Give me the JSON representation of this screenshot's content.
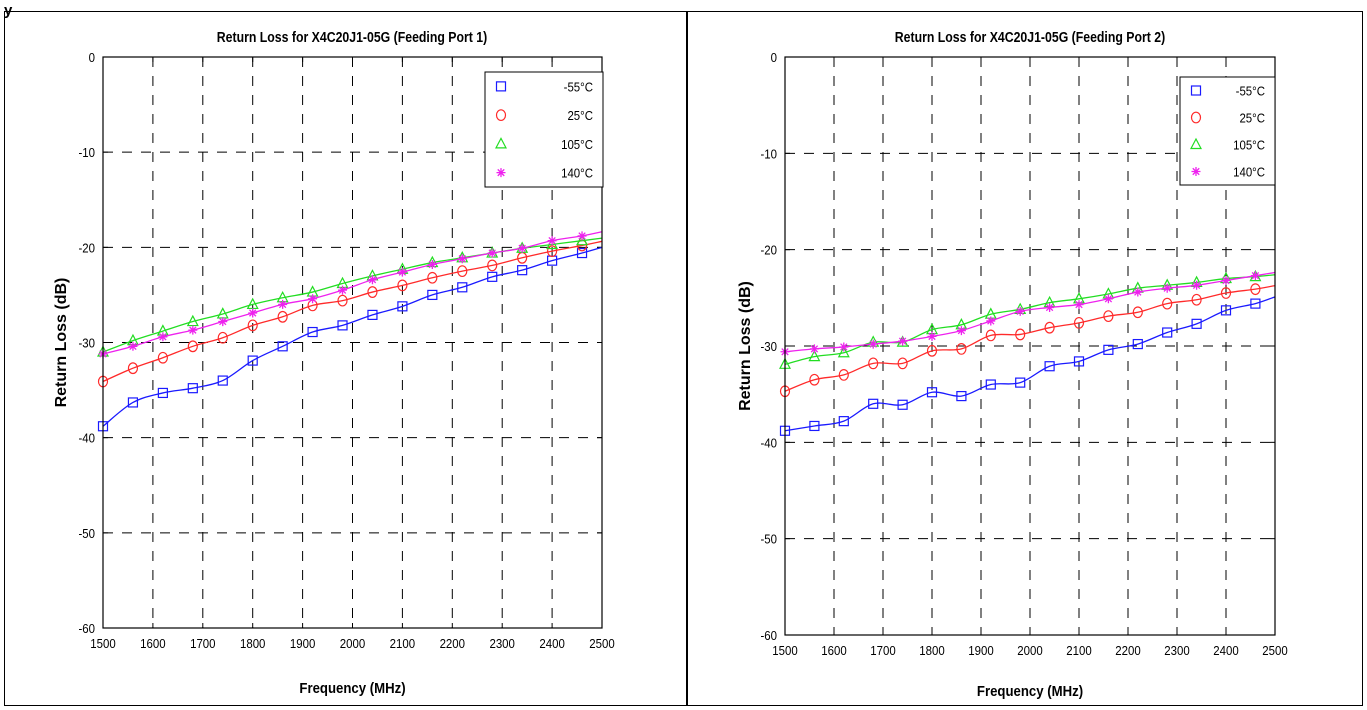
{
  "colors": {
    "minus55": "#1a1aff",
    "plus25": "#ff2a2a",
    "plus105": "#22dd22",
    "plus140": "#ee22ee",
    "grid": "#000000"
  },
  "chart_data": [
    {
      "type": "line",
      "title": "Return Loss for X4C20J1-05G (Feeding Port 1)",
      "xlabel": "Frequency (MHz)",
      "ylabel": "Return Loss (dB)",
      "xlim": [
        1500,
        2500
      ],
      "ylim": [
        -60,
        0
      ],
      "xticks": [
        1500,
        1600,
        1700,
        1800,
        1900,
        2000,
        2100,
        2200,
        2300,
        2400,
        2500
      ],
      "yticks": [
        0,
        -10,
        -20,
        -30,
        -40,
        -50,
        -60
      ],
      "grid": "dashed",
      "legend": "top-right",
      "x": [
        1500,
        1560,
        1620,
        1680,
        1740,
        1800,
        1860,
        1920,
        1980,
        2040,
        2100,
        2160,
        2220,
        2280,
        2340,
        2400,
        2460
      ],
      "series": [
        {
          "name": "-55°C",
          "marker": "square",
          "color": "#1a1aff",
          "values": [
            -38.8,
            -36.3,
            -35.3,
            -34.8,
            -34.0,
            -31.9,
            -30.4,
            -28.9,
            -28.2,
            -27.1,
            -26.2,
            -25.0,
            -24.2,
            -23.1,
            -22.4,
            -21.4,
            -20.6
          ]
        },
        {
          "name": "25°C",
          "marker": "circle",
          "color": "#ff2a2a",
          "values": [
            -34.1,
            -32.7,
            -31.6,
            -30.4,
            -29.5,
            -28.2,
            -27.3,
            -26.1,
            -25.6,
            -24.7,
            -24.0,
            -23.2,
            -22.5,
            -21.9,
            -21.1,
            -20.4,
            -19.8
          ]
        },
        {
          "name": "105°C",
          "marker": "triangle",
          "color": "#22dd22",
          "values": [
            -31.0,
            -29.8,
            -28.8,
            -27.8,
            -27.0,
            -26.0,
            -25.3,
            -24.7,
            -23.8,
            -23.0,
            -22.3,
            -21.6,
            -21.1,
            -20.6,
            -20.1,
            -19.7,
            -19.3
          ]
        },
        {
          "name": "140°C",
          "marker": "asterisk",
          "color": "#ee22ee",
          "values": [
            -31.2,
            -30.4,
            -29.4,
            -28.7,
            -27.8,
            -26.9,
            -26.0,
            -25.4,
            -24.5,
            -23.4,
            -22.6,
            -21.8,
            -21.2,
            -20.6,
            -20.1,
            -19.3,
            -18.8
          ]
        }
      ]
    },
    {
      "type": "line",
      "title": "Return Loss for X4C20J1-05G (Feeding Port 2)",
      "xlabel": "Frequency (MHz)",
      "ylabel": "Return Loss (dB)",
      "xlim": [
        1500,
        2500
      ],
      "ylim": [
        -60,
        0
      ],
      "xticks": [
        1500,
        1600,
        1700,
        1800,
        1900,
        2000,
        2100,
        2200,
        2300,
        2400,
        2500
      ],
      "yticks": [
        0,
        -10,
        -20,
        -30,
        -40,
        -50,
        -60
      ],
      "grid": "dashed",
      "legend": "top-right",
      "x": [
        1500,
        1560,
        1620,
        1680,
        1740,
        1800,
        1860,
        1920,
        1980,
        2040,
        2100,
        2160,
        2220,
        2280,
        2340,
        2400,
        2460
      ],
      "series": [
        {
          "name": "-55°C",
          "marker": "square",
          "color": "#1a1aff",
          "values": [
            -38.8,
            -38.3,
            -37.8,
            -36.0,
            -36.1,
            -34.8,
            -35.2,
            -34.0,
            -33.8,
            -32.1,
            -31.6,
            -30.4,
            -29.8,
            -28.6,
            -27.7,
            -26.3,
            -25.6
          ]
        },
        {
          "name": "25°C",
          "marker": "circle",
          "color": "#ff2a2a",
          "values": [
            -34.7,
            -33.5,
            -33.0,
            -31.8,
            -31.8,
            -30.5,
            -30.3,
            -28.9,
            -28.8,
            -28.1,
            -27.6,
            -26.9,
            -26.5,
            -25.6,
            -25.2,
            -24.5,
            -24.1
          ]
        },
        {
          "name": "105°C",
          "marker": "triangle",
          "color": "#22dd22",
          "values": [
            -31.9,
            -31.1,
            -30.7,
            -29.6,
            -29.6,
            -28.3,
            -27.8,
            -26.7,
            -26.2,
            -25.5,
            -25.1,
            -24.6,
            -24.0,
            -23.7,
            -23.4,
            -23.0,
            -22.8
          ]
        },
        {
          "name": "140°C",
          "marker": "asterisk",
          "color": "#ee22ee",
          "values": [
            -30.6,
            -30.3,
            -30.1,
            -29.8,
            -29.5,
            -29.0,
            -28.4,
            -27.4,
            -26.4,
            -26.0,
            -25.7,
            -25.1,
            -24.4,
            -24.0,
            -23.7,
            -23.2,
            -22.7
          ]
        }
      ]
    }
  ]
}
